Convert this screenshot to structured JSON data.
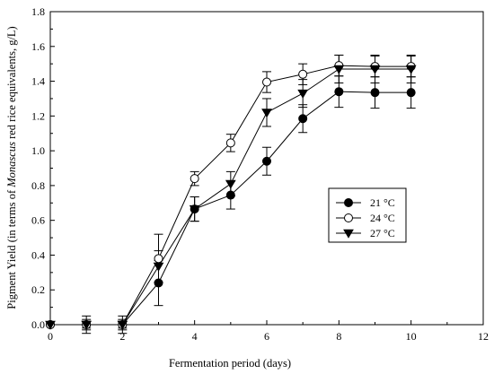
{
  "chart_data": {
    "type": "line",
    "xlabel": "Fermentation period (days)",
    "ylabel_parts": [
      "Pigment Yield (in terms of ",
      "Monascus",
      " red rice equivalents, g/L)"
    ],
    "xlim": [
      0,
      12
    ],
    "ylim": [
      0,
      1.8
    ],
    "xticks": [
      "0",
      "2",
      "4",
      "6",
      "8",
      "10",
      "12"
    ],
    "yticks": [
      "0.0",
      "0.2",
      "0.4",
      "0.6",
      "0.8",
      "1.0",
      "1.2",
      "1.4",
      "1.6",
      "1.8"
    ],
    "grid": false,
    "legend_position": "center-right",
    "x": [
      0,
      1,
      2,
      3,
      4,
      5,
      6,
      7,
      8,
      9,
      10
    ],
    "series": [
      {
        "name": "21 °C",
        "marker": "filled-circle",
        "values": [
          0.0,
          0.0,
          0.0,
          0.24,
          0.665,
          0.745,
          0.94,
          1.185,
          1.34,
          1.335,
          1.335
        ],
        "errors": [
          0.0,
          0.02,
          0.02,
          0.13,
          0.07,
          0.08,
          0.08,
          0.08,
          0.09,
          0.09,
          0.09
        ]
      },
      {
        "name": "24 °C",
        "marker": "open-circle",
        "values": [
          0.0,
          0.0,
          0.0,
          0.38,
          0.84,
          1.045,
          1.395,
          1.44,
          1.49,
          1.485,
          1.485
        ],
        "errors": [
          0.0,
          0.05,
          0.05,
          0.14,
          0.04,
          0.05,
          0.06,
          0.06,
          0.06,
          0.06,
          0.06
        ]
      },
      {
        "name": "27 °C",
        "marker": "filled-triangle-down",
        "values": [
          0.0,
          0.0,
          0.0,
          0.335,
          0.665,
          0.81,
          1.22,
          1.33,
          1.47,
          1.47,
          1.47
        ],
        "errors": [
          0.0,
          0.03,
          0.03,
          0.09,
          0.07,
          0.07,
          0.08,
          0.08,
          0.08,
          0.08,
          0.08
        ]
      }
    ]
  }
}
